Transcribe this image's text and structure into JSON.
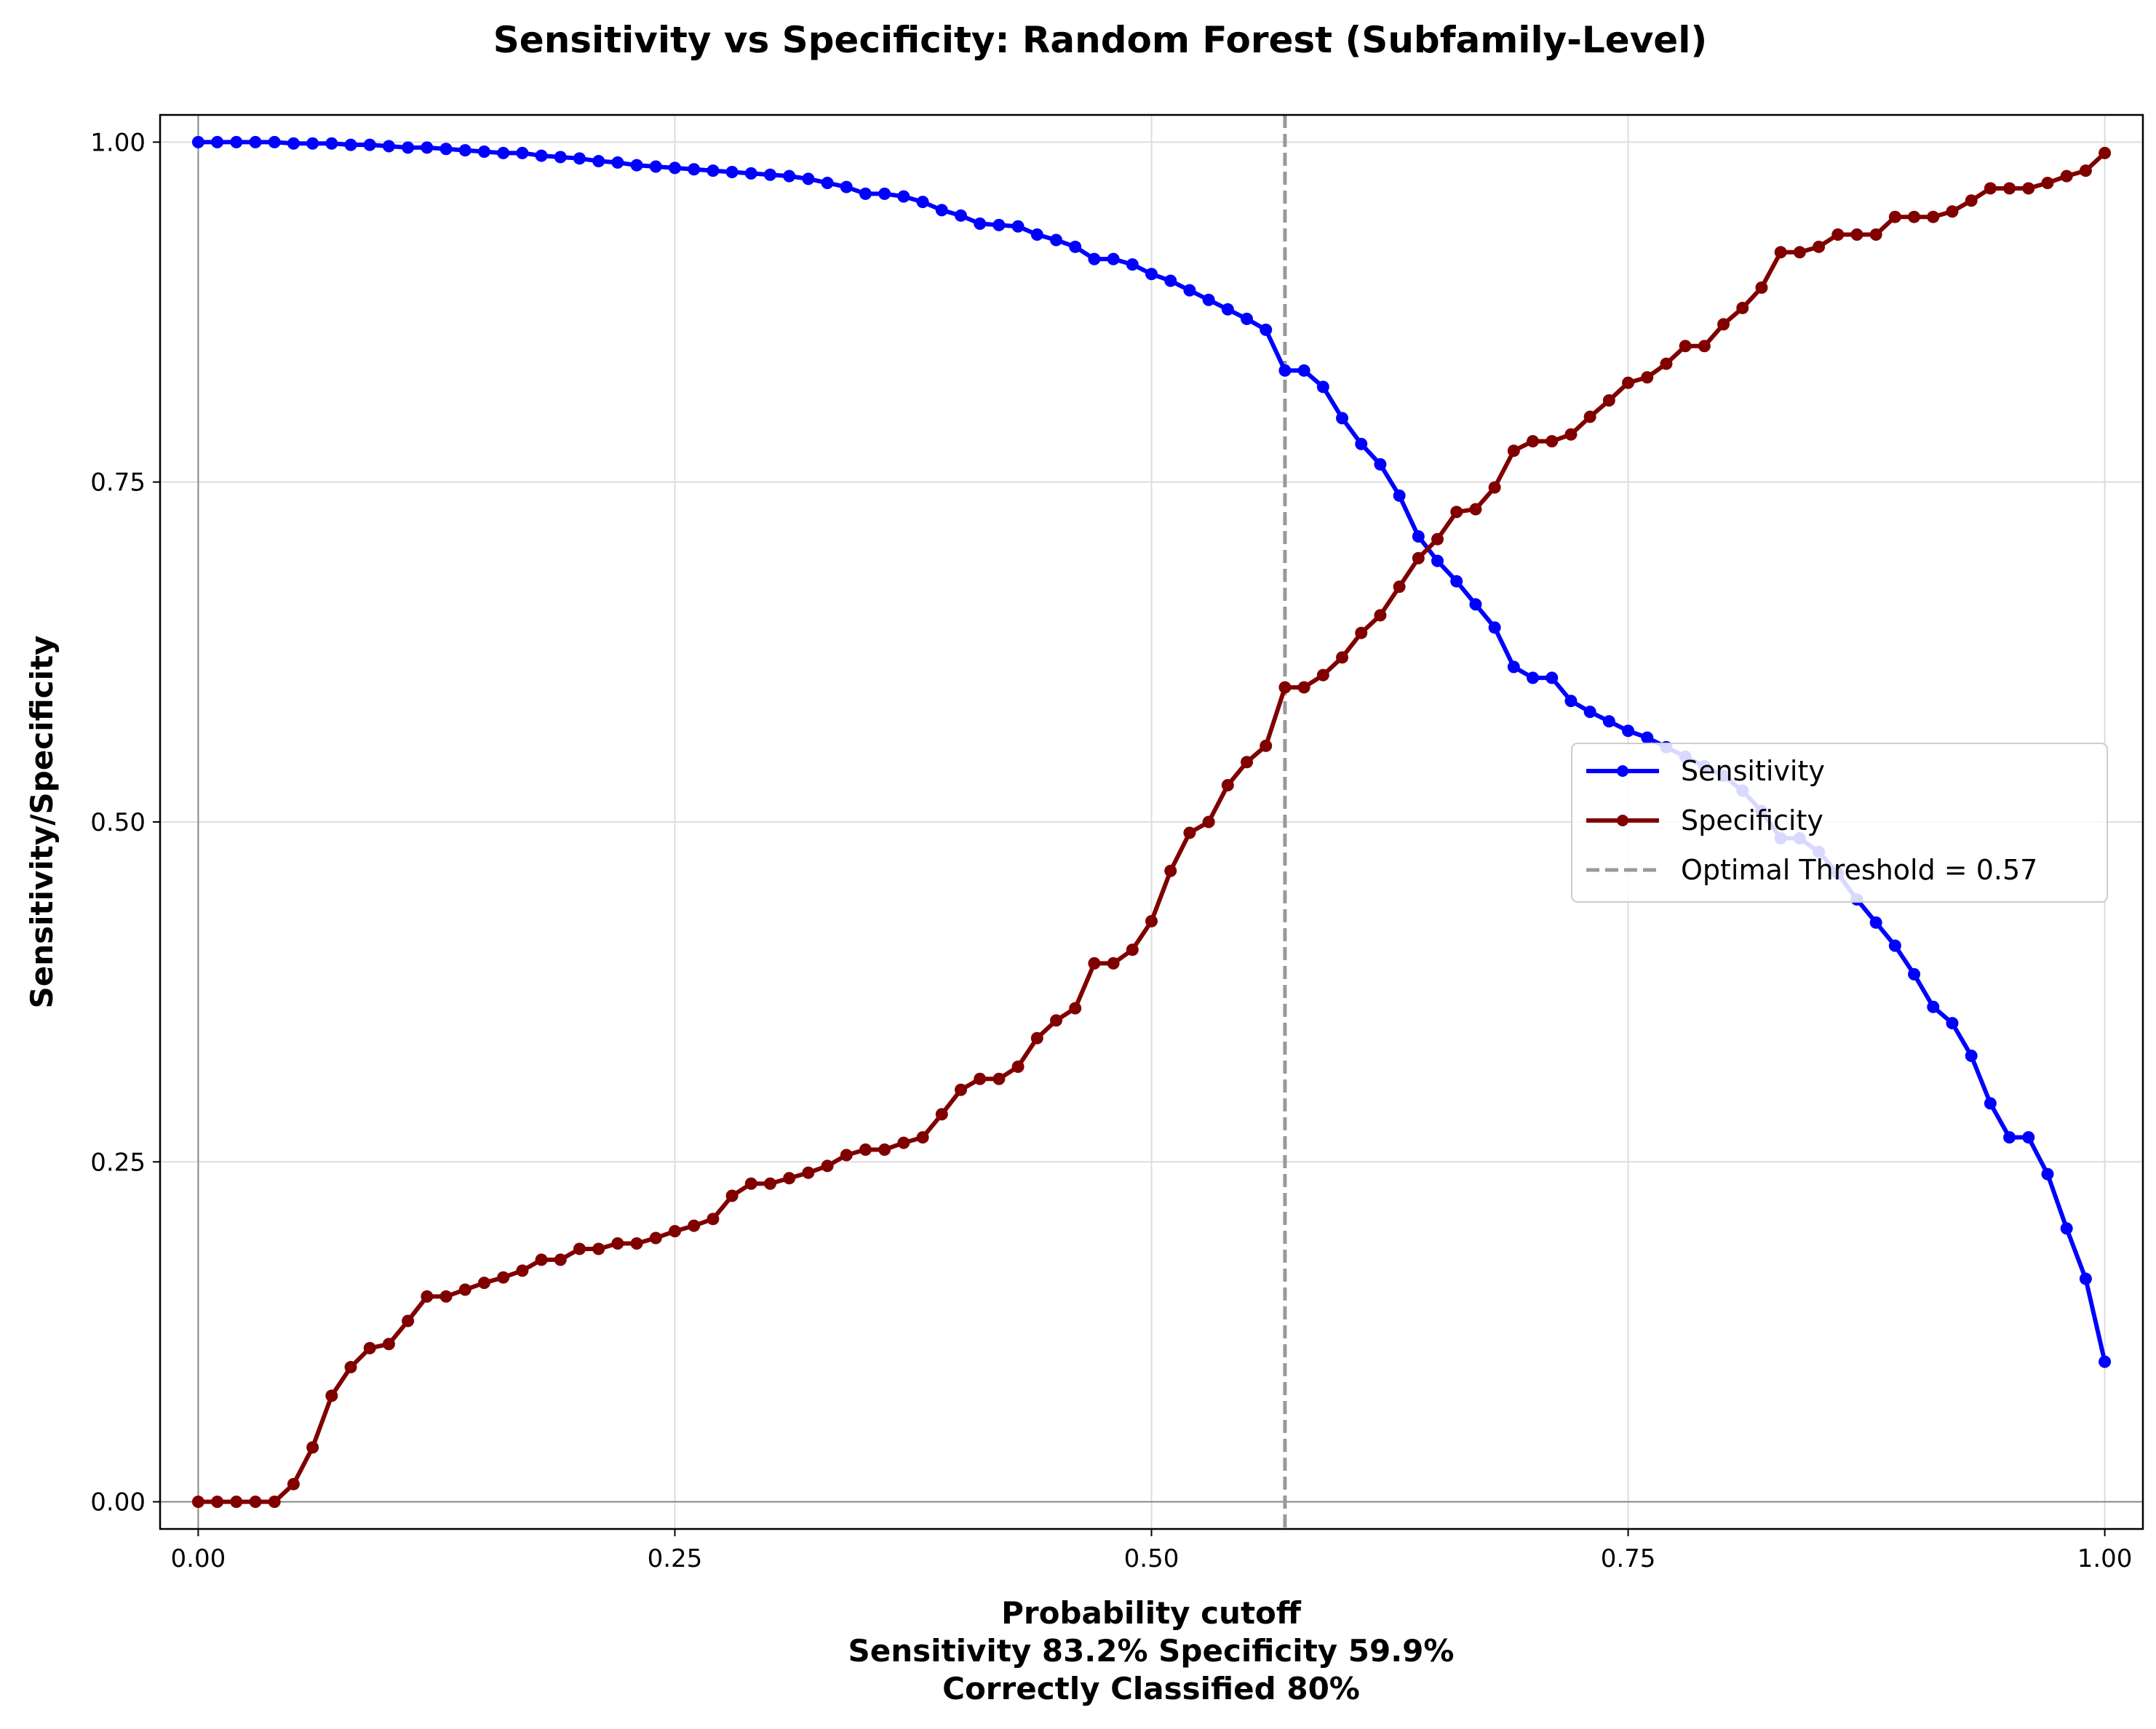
{
  "chart_data": {
    "type": "line",
    "title": "Sensitivity vs Specificity: Random Forest (Subfamily-Level)",
    "xlabel": "Probability cutoff",
    "xlabel_lines": [
      "Sensitivity 83.2% Specificity 59.9%",
      "Correctly Classified 80%"
    ],
    "ylabel": "Sensitivity/Specificity",
    "xlim": [
      -0.02,
      1.02
    ],
    "ylim": [
      -0.02,
      1.02
    ],
    "xticks": [
      0.0,
      0.25,
      0.5,
      0.75,
      1.0
    ],
    "xtick_labels": [
      "0.00",
      "0.25",
      "0.50",
      "0.75",
      "1.00"
    ],
    "yticks": [
      0.0,
      0.25,
      0.5,
      0.75,
      1.0
    ],
    "ytick_labels": [
      "0.00",
      "0.25",
      "0.50",
      "0.75",
      "1.00"
    ],
    "grid": true,
    "legend_position": "center-right",
    "reference_lines": [
      {
        "orientation": "vertical",
        "x": 0.57,
        "style": "dashed",
        "color": "#999999",
        "label": "Optimal Threshold = 0.57"
      }
    ],
    "x": [
      0.0,
      0.01,
      0.02,
      0.03,
      0.04,
      0.05,
      0.06,
      0.07,
      0.08,
      0.09,
      0.1,
      0.11,
      0.12,
      0.13,
      0.14,
      0.15,
      0.16,
      0.17,
      0.18,
      0.19,
      0.2,
      0.21,
      0.22,
      0.23,
      0.24,
      0.25,
      0.26,
      0.27,
      0.28,
      0.29,
      0.3,
      0.31,
      0.32,
      0.33,
      0.34,
      0.35,
      0.36,
      0.37,
      0.38,
      0.39,
      0.4,
      0.41,
      0.42,
      0.43,
      0.44,
      0.45,
      0.46,
      0.47,
      0.48,
      0.49,
      0.5,
      0.51,
      0.52,
      0.53,
      0.54,
      0.55,
      0.56,
      0.57,
      0.58,
      0.59,
      0.6,
      0.61,
      0.62,
      0.63,
      0.64,
      0.65,
      0.66,
      0.67,
      0.68,
      0.69,
      0.7,
      0.71,
      0.72,
      0.73,
      0.74,
      0.75,
      0.76,
      0.77,
      0.78,
      0.79,
      0.8,
      0.81,
      0.82,
      0.83,
      0.84,
      0.85,
      0.86,
      0.87,
      0.88,
      0.89,
      0.9,
      0.91,
      0.92,
      0.93,
      0.94,
      0.95,
      0.96,
      0.97,
      0.98,
      0.99,
      1.0
    ],
    "series": [
      {
        "name": "Sensitivity",
        "color": "#0000ff",
        "values": [
          1.0,
          1.0,
          1.0,
          1.0,
          1.0,
          0.999,
          0.999,
          0.999,
          0.998,
          0.998,
          0.997,
          0.996,
          0.996,
          0.995,
          0.994,
          0.993,
          0.992,
          0.992,
          0.99,
          0.989,
          0.988,
          0.986,
          0.985,
          0.983,
          0.982,
          0.981,
          0.98,
          0.979,
          0.978,
          0.977,
          0.976,
          0.975,
          0.973,
          0.97,
          0.967,
          0.962,
          0.962,
          0.96,
          0.956,
          0.95,
          0.946,
          0.94,
          0.939,
          0.938,
          0.932,
          0.928,
          0.923,
          0.914,
          0.914,
          0.91,
          0.903,
          0.898,
          0.891,
          0.884,
          0.877,
          0.87,
          0.862,
          0.832,
          0.832,
          0.82,
          0.797,
          0.778,
          0.763,
          0.74,
          0.71,
          0.692,
          0.677,
          0.66,
          0.643,
          0.614,
          0.606,
          0.606,
          0.589,
          0.581,
          0.574,
          0.567,
          0.562,
          0.555,
          0.548,
          0.541,
          0.534,
          0.523,
          0.508,
          0.488,
          0.488,
          0.478,
          0.462,
          0.443,
          0.426,
          0.409,
          0.388,
          0.364,
          0.352,
          0.328,
          0.293,
          0.268,
          0.268,
          0.241,
          0.201,
          0.164,
          0.103
        ]
      },
      {
        "name": "Specificity",
        "color": "#800000",
        "values": [
          0.0,
          0.0,
          0.0,
          0.0,
          0.0,
          0.013,
          0.04,
          0.078,
          0.099,
          0.113,
          0.116,
          0.133,
          0.151,
          0.151,
          0.156,
          0.161,
          0.165,
          0.17,
          0.178,
          0.178,
          0.186,
          0.186,
          0.19,
          0.19,
          0.194,
          0.199,
          0.203,
          0.208,
          0.225,
          0.234,
          0.234,
          0.238,
          0.242,
          0.247,
          0.255,
          0.259,
          0.259,
          0.264,
          0.268,
          0.285,
          0.303,
          0.311,
          0.311,
          0.32,
          0.341,
          0.354,
          0.363,
          0.396,
          0.396,
          0.406,
          0.427,
          0.464,
          0.492,
          0.5,
          0.527,
          0.544,
          0.556,
          0.599,
          0.599,
          0.608,
          0.621,
          0.639,
          0.652,
          0.673,
          0.694,
          0.708,
          0.728,
          0.73,
          0.746,
          0.773,
          0.78,
          0.78,
          0.785,
          0.798,
          0.81,
          0.823,
          0.827,
          0.837,
          0.85,
          0.85,
          0.866,
          0.878,
          0.893,
          0.919,
          0.919,
          0.923,
          0.932,
          0.932,
          0.932,
          0.945,
          0.945,
          0.945,
          0.949,
          0.957,
          0.966,
          0.966,
          0.966,
          0.97,
          0.975,
          0.979,
          0.992
        ]
      }
    ]
  }
}
